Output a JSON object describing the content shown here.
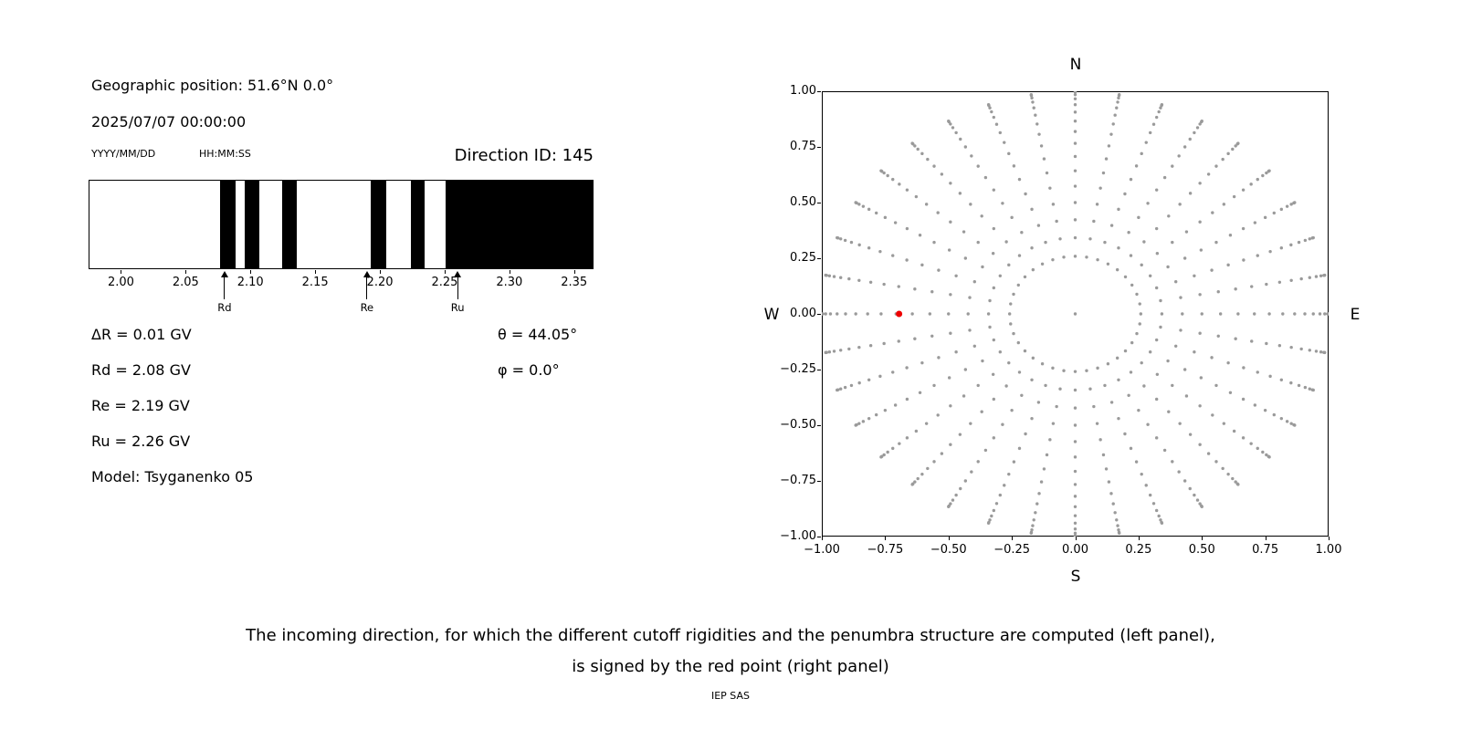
{
  "figure": {
    "background": "#ffffff",
    "text_color": "#000000"
  },
  "header": {
    "geo_position": "Geographic position: 51.6°N 0.0°",
    "datetime": "2025/07/07 00:00:00",
    "date_format_hint": "YYYY/MM/DD",
    "time_format_hint": "HH:MM:SS",
    "direction_id": "Direction ID: 145"
  },
  "info_panel": {
    "delta_r": "ΔR = 0.01 GV",
    "rd": "Rd = 2.08 GV",
    "re": "Re = 2.19 GV",
    "ru": "Ru = 2.26 GV",
    "model": "Model: Tsyganenko 05",
    "theta": "θ = 44.05°",
    "phi": "φ = 0.0°"
  },
  "caption": {
    "line1": "The incoming direction, for which the different cutoff rigidities and the penumbra structure are computed (left panel),",
    "line2": "is signed by the red point (right panel)",
    "credit": "IEP SAS"
  },
  "chart_data": [
    {
      "type": "bar",
      "name": "penumbra-structure",
      "description": "Cutoff rigidity penumbra: black bands are forbidden rigidity intervals, white is allowed",
      "xlim": [
        1.975,
        2.365
      ],
      "xtick_values": [
        2.0,
        2.05,
        2.1,
        2.15,
        2.2,
        2.25,
        2.3,
        2.35
      ],
      "xtick_labels": [
        "2.00",
        "2.05",
        "2.10",
        "2.15",
        "2.20",
        "2.25",
        "2.30",
        "2.35"
      ],
      "forbidden_bands_gv": [
        [
          2.076,
          2.088
        ],
        [
          2.095,
          2.107
        ],
        [
          2.124,
          2.136
        ],
        [
          2.193,
          2.205
        ],
        [
          2.224,
          2.235
        ],
        [
          2.251,
          2.365
        ]
      ],
      "band_color": "#000000",
      "background_color": "#ffffff",
      "annotations": [
        {
          "label": "Rd",
          "value_gv": 2.08
        },
        {
          "label": "Re",
          "value_gv": 2.19
        },
        {
          "label": "Ru",
          "value_gv": 2.26
        }
      ]
    },
    {
      "type": "scatter",
      "name": "incoming-direction-map",
      "xlim": [
        -1,
        1
      ],
      "ylim": [
        -1,
        1
      ],
      "xtick_values": [
        -1.0,
        -0.75,
        -0.5,
        -0.25,
        0.0,
        0.25,
        0.5,
        0.75,
        1.0
      ],
      "xtick_labels": [
        "−1.00",
        "−0.75",
        "−0.50",
        "−0.25",
        "0.00",
        "0.25",
        "0.50",
        "0.75",
        "1.00"
      ],
      "ytick_values": [
        1.0,
        0.75,
        0.5,
        0.25,
        0.0,
        -0.25,
        -0.5,
        -0.75,
        -1.0
      ],
      "ytick_labels": [
        "1.00",
        "0.75",
        "0.50",
        "0.25",
        "0.00",
        "−0.25",
        "−0.50",
        "−0.75",
        "−1.00"
      ],
      "compass": {
        "top": "N",
        "bottom": "S",
        "left": "W",
        "right": "E"
      },
      "grid_points": {
        "pattern": "radial",
        "azimuth_deg": {
          "start": 0,
          "stop": 350,
          "step": 10
        },
        "zenith_deg": {
          "start": 15,
          "stop": 90,
          "step": 5
        },
        "radius_mapping": "sin(zenith)",
        "include_center_point": true,
        "color": "#9a9a9a",
        "marker_radius_px": 1.7
      },
      "highlight_point": {
        "x": -0.695,
        "y": 0.0,
        "color": "#ee0000",
        "marker_radius_px": 3.5
      }
    }
  ]
}
